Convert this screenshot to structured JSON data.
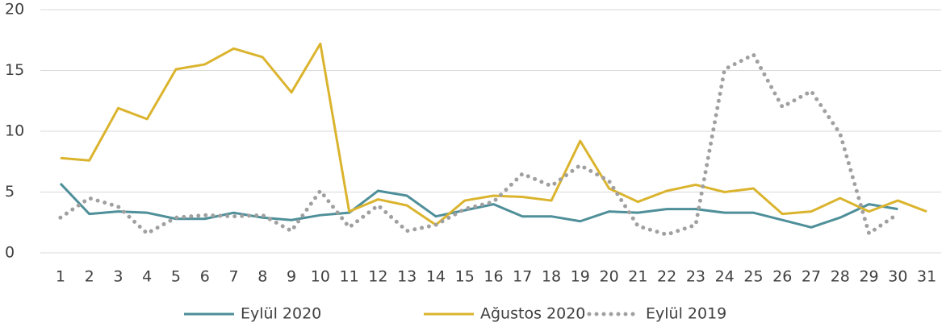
{
  "chart_data": {
    "type": "line",
    "categories": [
      "1",
      "2",
      "3",
      "4",
      "5",
      "6",
      "7",
      "8",
      "9",
      "10",
      "11",
      "12",
      "13",
      "14",
      "15",
      "16",
      "17",
      "18",
      "19",
      "20",
      "21",
      "22",
      "23",
      "24",
      "25",
      "26",
      "27",
      "28",
      "29",
      "30",
      "31"
    ],
    "series": [
      {
        "name": "Eylül 2020",
        "color": "#4e8f99",
        "style": "solid",
        "values": [
          5.7,
          3.2,
          3.4,
          3.3,
          2.8,
          2.8,
          3.3,
          2.9,
          2.7,
          3.1,
          3.3,
          5.1,
          4.7,
          3.0,
          3.5,
          4.0,
          3.0,
          3.0,
          2.6,
          3.4,
          3.3,
          3.6,
          3.6,
          3.3,
          3.3,
          2.7,
          2.1,
          2.9,
          4.0,
          3.6,
          null
        ]
      },
      {
        "name": "Ağustos 2020",
        "color": "#dbb42e",
        "style": "solid",
        "values": [
          7.8,
          7.6,
          11.9,
          11.0,
          15.1,
          15.5,
          16.8,
          16.1,
          13.2,
          17.2,
          3.4,
          4.4,
          3.9,
          2.3,
          4.3,
          4.7,
          4.6,
          4.3,
          9.2,
          5.3,
          4.2,
          5.1,
          5.6,
          5.0,
          5.3,
          3.2,
          3.4,
          4.5,
          3.4,
          4.3,
          3.4
        ]
      },
      {
        "name": "Eylül 2019",
        "color": "#a0a0a0",
        "style": "dotted",
        "values": [
          2.9,
          4.5,
          3.8,
          1.6,
          2.9,
          3.1,
          3.0,
          3.1,
          1.8,
          5.1,
          2.1,
          3.9,
          1.8,
          2.3,
          3.6,
          4.2,
          6.5,
          5.5,
          7.2,
          5.9,
          2.2,
          1.5,
          2.3,
          15.1,
          16.3,
          12.0,
          13.3,
          9.8,
          1.6,
          3.2,
          null
        ]
      }
    ],
    "ylim": [
      0,
      20
    ],
    "yticks": [
      0,
      5,
      10,
      15,
      20
    ],
    "grid": true,
    "legend": "bottom"
  }
}
